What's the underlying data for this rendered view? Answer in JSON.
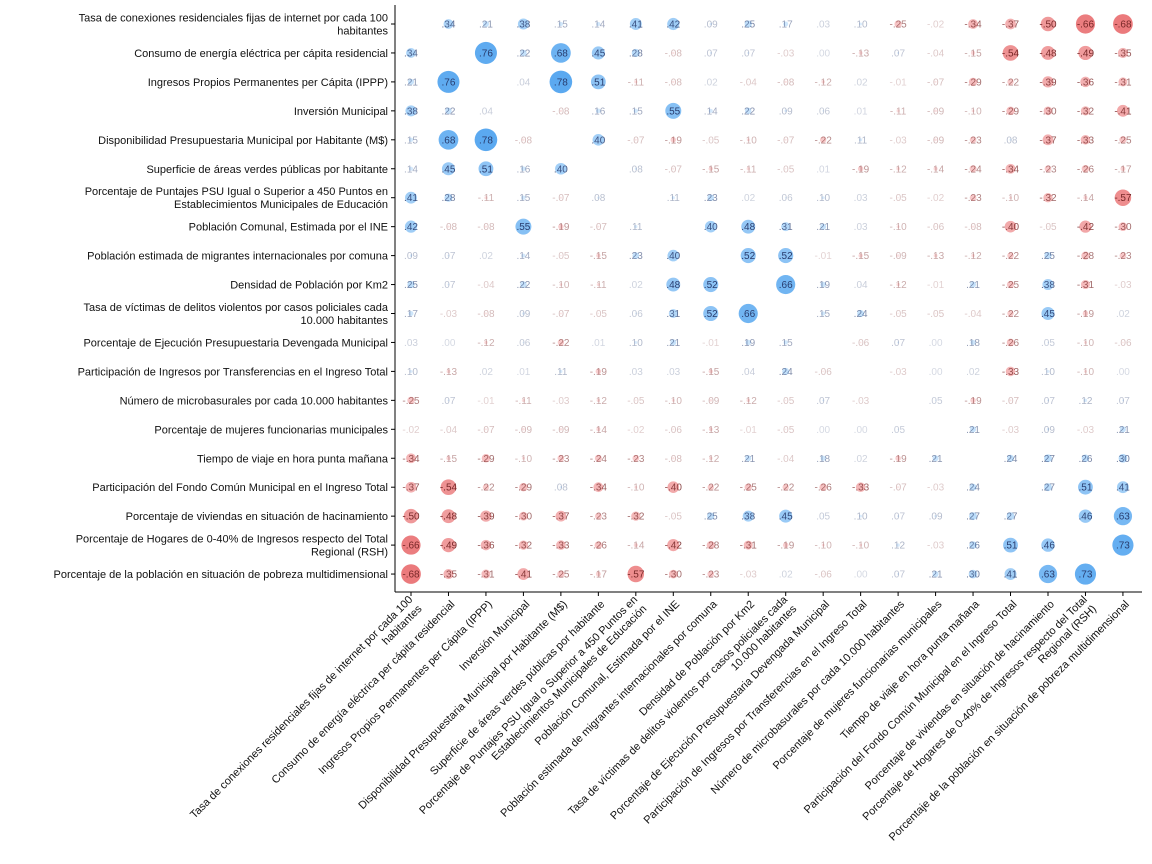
{
  "chart_data": {
    "type": "heatmap",
    "subtype": "correlation-matrix",
    "title": "",
    "xlabel": "",
    "ylabel": "",
    "grid": false,
    "colors": {
      "positive": "#5aa9f0",
      "negative": "#e8686a"
    },
    "variables": [
      [
        "Tasa de conexiones residenciales fijas de internet por cada 100",
        "habitantes"
      ],
      [
        "Consumo de energía eléctrica per cápita residencial"
      ],
      [
        "Ingresos Propios Permanentes per Cápita (IPPP)"
      ],
      [
        "Inversión Municipal"
      ],
      [
        "Disponibilidad Presupuestaria Municipal por Habitante (M$)"
      ],
      [
        "Superficie de áreas verdes públicas por habitante"
      ],
      [
        "Porcentaje de Puntajes PSU Igual o Superior a 450 Puntos en",
        "Establecimientos Municipales de Educación"
      ],
      [
        "Población Comunal, Estimada por el INE"
      ],
      [
        "Población estimada de migrantes internacionales por comuna"
      ],
      [
        "Densidad de Población por Km2"
      ],
      [
        "Tasa de víctimas de delitos violentos por casos policiales cada",
        "10.000 habitantes"
      ],
      [
        "Porcentaje de Ejecución Presupuestaria Devengada Municipal"
      ],
      [
        "Participación de Ingresos por Transferencias en el Ingreso Total"
      ],
      [
        "Número de microbasurales por cada 10.000 habitantes"
      ],
      [
        "Porcentaje de mujeres funcionarias municipales"
      ],
      [
        "Tiempo de viaje en hora punta mañana"
      ],
      [
        "Participación del Fondo Común Municipal en el Ingreso Total"
      ],
      [
        "Porcentaje de viviendas en situación de hacinamiento"
      ],
      [
        "Porcentaje de Hogares de 0-40% de Ingresos respecto del Total",
        "Regional (RSH)"
      ],
      [
        "Porcentaje de la población en situación de pobreza multidimensional"
      ]
    ],
    "matrix": [
      [
        null,
        0.34,
        0.21,
        0.38,
        0.15,
        0.14,
        0.41,
        0.42,
        0.09,
        0.25,
        0.17,
        0.03,
        0.1,
        -0.25,
        -0.02,
        -0.34,
        -0.37,
        -0.5,
        -0.66,
        -0.68
      ],
      [
        0.34,
        null,
        0.76,
        0.22,
        0.68,
        0.45,
        0.28,
        -0.08,
        0.07,
        0.07,
        -0.03,
        0.0,
        -0.13,
        0.07,
        -0.04,
        -0.15,
        -0.54,
        -0.48,
        -0.49,
        -0.35
      ],
      [
        0.21,
        0.76,
        null,
        0.04,
        0.78,
        0.51,
        -0.11,
        -0.08,
        0.02,
        -0.04,
        -0.08,
        -0.12,
        0.02,
        -0.01,
        -0.07,
        -0.29,
        -0.22,
        -0.39,
        -0.36,
        -0.31
      ],
      [
        0.38,
        0.22,
        0.04,
        null,
        -0.08,
        0.16,
        0.15,
        0.55,
        0.14,
        0.22,
        0.09,
        0.06,
        0.01,
        -0.11,
        -0.09,
        -0.1,
        -0.29,
        -0.3,
        -0.32,
        -0.41
      ],
      [
        0.15,
        0.68,
        0.78,
        -0.08,
        null,
        0.4,
        -0.07,
        -0.19,
        -0.05,
        -0.1,
        -0.07,
        -0.22,
        0.11,
        -0.03,
        -0.09,
        -0.23,
        0.08,
        -0.37,
        -0.33,
        -0.25
      ],
      [
        0.14,
        0.45,
        0.51,
        0.16,
        0.4,
        null,
        0.08,
        -0.07,
        -0.15,
        -0.11,
        -0.05,
        0.01,
        -0.19,
        -0.12,
        -0.14,
        -0.24,
        -0.34,
        -0.23,
        -0.26,
        -0.17
      ],
      [
        0.41,
        0.28,
        -0.11,
        0.15,
        -0.07,
        0.08,
        null,
        0.11,
        0.23,
        0.02,
        0.06,
        0.1,
        0.03,
        -0.05,
        -0.02,
        -0.23,
        -0.1,
        -0.32,
        -0.14,
        -0.57
      ],
      [
        0.42,
        -0.08,
        -0.08,
        0.55,
        -0.19,
        -0.07,
        0.11,
        null,
        0.4,
        0.48,
        0.31,
        0.21,
        0.03,
        -0.1,
        -0.06,
        -0.08,
        -0.4,
        -0.05,
        -0.42,
        -0.3
      ],
      [
        0.09,
        0.07,
        0.02,
        0.14,
        -0.05,
        -0.15,
        0.23,
        0.4,
        null,
        0.52,
        0.52,
        -0.01,
        -0.15,
        -0.09,
        -0.13,
        -0.12,
        -0.22,
        0.25,
        -0.28,
        -0.23
      ],
      [
        0.25,
        0.07,
        -0.04,
        0.22,
        -0.1,
        -0.11,
        0.02,
        0.48,
        0.52,
        null,
        0.66,
        0.19,
        0.04,
        -0.12,
        -0.01,
        0.21,
        -0.25,
        0.38,
        -0.31,
        -0.03
      ],
      [
        0.17,
        -0.03,
        -0.08,
        0.09,
        -0.07,
        -0.05,
        0.06,
        0.31,
        0.52,
        0.66,
        null,
        0.15,
        0.24,
        -0.05,
        -0.05,
        -0.04,
        -0.22,
        0.45,
        -0.19,
        0.02
      ],
      [
        0.03,
        0.0,
        -0.12,
        0.06,
        -0.22,
        0.01,
        0.1,
        0.21,
        -0.01,
        0.19,
        0.15,
        null,
        -0.06,
        0.07,
        0.0,
        0.18,
        -0.26,
        0.05,
        -0.1,
        -0.06
      ],
      [
        0.1,
        -0.13,
        0.02,
        0.01,
        0.11,
        -0.19,
        0.03,
        0.03,
        -0.15,
        0.04,
        0.24,
        -0.06,
        null,
        -0.03,
        0.0,
        0.02,
        -0.33,
        0.1,
        -0.1,
        0.0
      ],
      [
        -0.25,
        0.07,
        -0.01,
        -0.11,
        -0.03,
        -0.12,
        -0.05,
        -0.1,
        -0.09,
        -0.12,
        -0.05,
        0.07,
        -0.03,
        null,
        0.05,
        -0.19,
        -0.07,
        0.07,
        0.12,
        0.07
      ],
      [
        -0.02,
        -0.04,
        -0.07,
        -0.09,
        -0.09,
        -0.14,
        -0.02,
        -0.06,
        -0.13,
        -0.01,
        -0.05,
        0.0,
        0.0,
        0.05,
        null,
        0.21,
        -0.03,
        0.09,
        -0.03,
        0.21
      ],
      [
        -0.34,
        -0.15,
        -0.29,
        -0.1,
        -0.23,
        -0.24,
        -0.23,
        -0.08,
        -0.12,
        0.21,
        -0.04,
        0.18,
        0.02,
        -0.19,
        0.21,
        null,
        0.24,
        0.27,
        0.26,
        0.3
      ],
      [
        -0.37,
        -0.54,
        -0.22,
        -0.29,
        0.08,
        -0.34,
        -0.1,
        -0.4,
        -0.22,
        -0.25,
        -0.22,
        -0.26,
        -0.33,
        -0.07,
        -0.03,
        0.24,
        null,
        0.27,
        0.51,
        0.41
      ],
      [
        -0.5,
        -0.48,
        -0.39,
        -0.3,
        -0.37,
        -0.23,
        -0.32,
        -0.05,
        0.25,
        0.38,
        0.45,
        0.05,
        0.1,
        0.07,
        0.09,
        0.27,
        0.27,
        null,
        0.46,
        0.63
      ],
      [
        -0.66,
        -0.49,
        -0.36,
        -0.32,
        -0.33,
        -0.26,
        -0.14,
        -0.42,
        -0.28,
        -0.31,
        -0.19,
        -0.1,
        -0.1,
        0.12,
        -0.03,
        0.26,
        0.51,
        0.46,
        null,
        0.73
      ],
      [
        -0.68,
        -0.35,
        -0.31,
        -0.41,
        -0.25,
        -0.17,
        -0.57,
        -0.3,
        -0.23,
        -0.03,
        0.02,
        -0.06,
        0.0,
        0.07,
        0.21,
        0.3,
        0.41,
        0.63,
        0.73,
        null
      ]
    ]
  }
}
